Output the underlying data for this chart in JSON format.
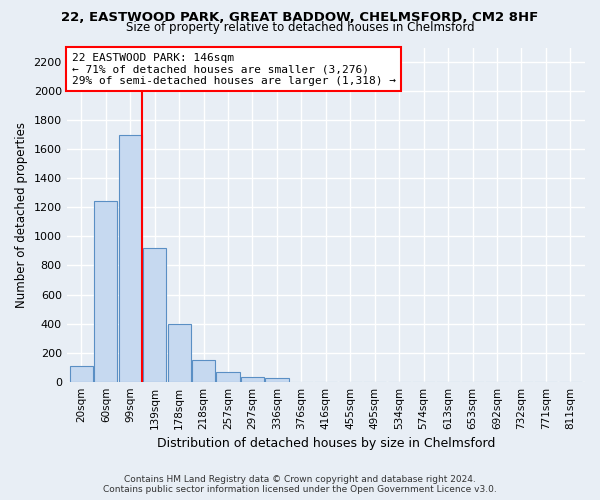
{
  "title1": "22, EASTWOOD PARK, GREAT BADDOW, CHELMSFORD, CM2 8HF",
  "title2": "Size of property relative to detached houses in Chelmsford",
  "xlabel": "Distribution of detached houses by size in Chelmsford",
  "ylabel": "Number of detached properties",
  "bar_color": "#c6d9f0",
  "bar_edge_color": "#5a8fc4",
  "categories": [
    "20sqm",
    "60sqm",
    "99sqm",
    "139sqm",
    "178sqm",
    "218sqm",
    "257sqm",
    "297sqm",
    "336sqm",
    "376sqm",
    "416sqm",
    "455sqm",
    "495sqm",
    "534sqm",
    "574sqm",
    "613sqm",
    "653sqm",
    "692sqm",
    "732sqm",
    "771sqm",
    "811sqm"
  ],
  "values": [
    110,
    1245,
    1700,
    920,
    400,
    150,
    65,
    35,
    25,
    0,
    0,
    0,
    0,
    0,
    0,
    0,
    0,
    0,
    0,
    0,
    0
  ],
  "ylim": [
    0,
    2300
  ],
  "yticks": [
    0,
    200,
    400,
    600,
    800,
    1000,
    1200,
    1400,
    1600,
    1800,
    2000,
    2200
  ],
  "vline_x": 2.5,
  "annotation_title": "22 EASTWOOD PARK: 146sqm",
  "annotation_line1": "← 71% of detached houses are smaller (3,276)",
  "annotation_line2": "29% of semi-detached houses are larger (1,318) →",
  "footer1": "Contains HM Land Registry data © Crown copyright and database right 2024.",
  "footer2": "Contains public sector information licensed under the Open Government Licence v3.0.",
  "bg_color": "#e8eef5",
  "plot_bg_color": "#e8eef5"
}
